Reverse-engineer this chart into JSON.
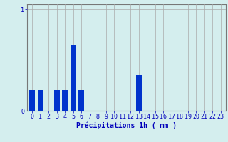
{
  "hours": [
    0,
    1,
    2,
    3,
    4,
    5,
    6,
    7,
    8,
    9,
    10,
    11,
    12,
    13,
    14,
    15,
    16,
    17,
    18,
    19,
    20,
    21,
    22,
    23
  ],
  "values": [
    0.2,
    0.2,
    0.0,
    0.2,
    0.2,
    0.65,
    0.2,
    0.0,
    0.0,
    0.0,
    0.0,
    0.0,
    0.0,
    0.35,
    0.0,
    0.0,
    0.0,
    0.0,
    0.0,
    0.0,
    0.0,
    0.0,
    0.0,
    0.0
  ],
  "bar_color": "#0033cc",
  "bg_color": "#d4eeee",
  "grid_color": "#aaaaaa",
  "axis_color": "#0000bb",
  "spine_color": "#777777",
  "xlabel": "Précipitations 1h ( mm )",
  "ylim": [
    0,
    1.05
  ],
  "yticks": [
    0,
    1
  ],
  "ytick_labels": [
    "0",
    "1"
  ],
  "xlabel_fontsize": 7,
  "tick_fontsize": 6,
  "bar_width": 0.7
}
